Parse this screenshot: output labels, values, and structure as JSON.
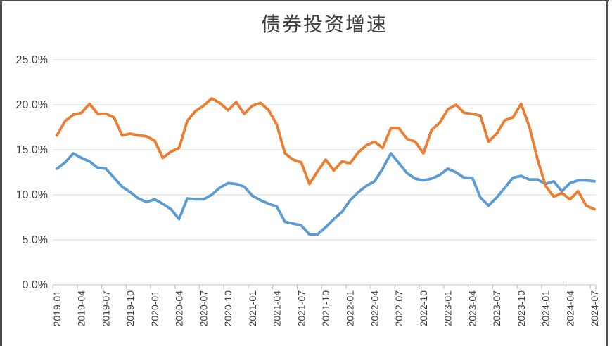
{
  "frame": {
    "title": "债券投资增速"
  },
  "chart_data": {
    "type": "line",
    "title": "债券投资增速",
    "grid": true,
    "legend": "none",
    "ylim": [
      0,
      25
    ],
    "y_ticks": [
      "25.0%",
      "20.0%",
      "15.0%",
      "10.0%",
      "5.0%",
      "0.0%"
    ],
    "y_tick_values": [
      25,
      20,
      15,
      10,
      5,
      0
    ],
    "x_label_rotation": -90,
    "x_axis_labels": [
      "2019-01",
      "2019-04",
      "2019-07",
      "2019-10",
      "2020-01",
      "2020-04",
      "2020-07",
      "2020-10",
      "2021-01",
      "2021-04",
      "2021-07",
      "2021-10",
      "2022-01",
      "2022-04",
      "2022-07",
      "2022-10",
      "2023-01",
      "2023-04",
      "2023-07",
      "2023-10",
      "2024-01",
      "2024-04",
      "2024-07"
    ],
    "x": [
      "2019-01",
      "2019-02",
      "2019-03",
      "2019-04",
      "2019-05",
      "2019-06",
      "2019-07",
      "2019-08",
      "2019-09",
      "2019-10",
      "2019-11",
      "2019-12",
      "2020-01",
      "2020-02",
      "2020-03",
      "2020-04",
      "2020-05",
      "2020-06",
      "2020-07",
      "2020-08",
      "2020-09",
      "2020-10",
      "2020-11",
      "2020-12",
      "2021-01",
      "2021-02",
      "2021-03",
      "2021-04",
      "2021-05",
      "2021-06",
      "2021-07",
      "2021-08",
      "2021-09",
      "2021-10",
      "2021-11",
      "2021-12",
      "2022-01",
      "2022-02",
      "2022-03",
      "2022-04",
      "2022-05",
      "2022-06",
      "2022-07",
      "2022-08",
      "2022-09",
      "2022-10",
      "2022-11",
      "2022-12",
      "2023-01",
      "2023-02",
      "2023-03",
      "2023-04",
      "2023-05",
      "2023-06",
      "2023-07",
      "2023-08",
      "2023-09",
      "2023-10",
      "2023-11",
      "2023-12",
      "2024-01",
      "2024-02",
      "2024-03",
      "2024-04",
      "2024-05",
      "2024-06",
      "2024-07"
    ],
    "series": [
      {
        "name": "series-blue",
        "color": "#5B9BD5",
        "values": [
          12.9,
          13.6,
          14.6,
          14.1,
          13.7,
          13.0,
          12.9,
          11.9,
          10.9,
          10.3,
          9.6,
          9.2,
          9.5,
          9.0,
          8.4,
          7.3,
          9.6,
          9.5,
          9.5,
          10.0,
          10.8,
          11.3,
          11.2,
          10.9,
          9.9,
          9.4,
          9.0,
          8.7,
          7.0,
          6.8,
          6.6,
          5.6,
          5.6,
          6.4,
          7.3,
          8.1,
          9.4,
          10.3,
          11.0,
          11.5,
          12.9,
          14.6,
          13.5,
          12.4,
          11.8,
          11.6,
          11.8,
          12.2,
          12.9,
          12.5,
          11.9,
          11.9,
          9.7,
          8.8,
          9.7,
          10.8,
          11.9,
          12.1,
          11.7,
          11.7,
          11.2,
          11.5,
          10.4,
          11.3,
          11.6,
          11.6,
          11.5
        ]
      },
      {
        "name": "series-orange",
        "color": "#ED7D31",
        "values": [
          16.6,
          18.2,
          18.9,
          19.1,
          20.1,
          19.0,
          19.0,
          18.6,
          16.6,
          16.8,
          16.6,
          16.5,
          16.0,
          14.1,
          14.8,
          15.2,
          18.2,
          19.3,
          19.9,
          20.7,
          20.2,
          19.4,
          20.3,
          19.0,
          19.9,
          20.2,
          19.4,
          17.8,
          14.6,
          13.9,
          13.6,
          11.2,
          12.6,
          13.9,
          12.7,
          13.7,
          13.5,
          14.7,
          15.5,
          15.9,
          15.2,
          17.4,
          17.4,
          16.2,
          15.9,
          14.6,
          17.2,
          18.0,
          19.5,
          20.0,
          19.1,
          19.0,
          18.8,
          15.9,
          16.8,
          18.3,
          18.6,
          20.1,
          17.6,
          14.0,
          11.0,
          9.8,
          10.2,
          9.5,
          10.4,
          8.8,
          8.4
        ]
      }
    ],
    "colors": {
      "gridline": "#D9D9D9",
      "axis": "#BFBFBF",
      "tick_label": "#404040",
      "title": "#3F3F3F"
    }
  }
}
